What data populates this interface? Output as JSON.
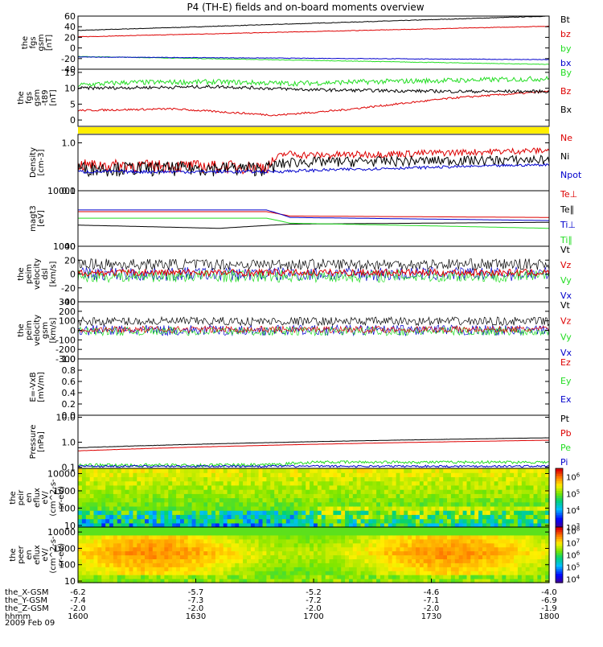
{
  "title": "P4 (TH-E) fields and on-board moments overview",
  "colors": {
    "black": "#000000",
    "red": "#dd0000",
    "green": "#22dd22",
    "blue": "#0000cc",
    "yellow": "#ffee00"
  },
  "chart_data": [
    {
      "type": "line",
      "ylabel": [
        "the",
        "fgs",
        "gsm",
        "[nT]"
      ],
      "ylim": [
        -40,
        60
      ],
      "yticks": [
        "60",
        "40",
        "20",
        "0",
        "-20",
        "-40"
      ],
      "legend": [
        {
          "label": "Bt",
          "color": "black"
        },
        {
          "label": "bz",
          "color": "red"
        },
        {
          "label": "by",
          "color": "green"
        },
        {
          "label": "bx",
          "color": "blue"
        }
      ],
      "series": [
        {
          "name": "Bt",
          "color": "black",
          "x": [
            0,
            1
          ],
          "y": [
            33,
            60
          ],
          "noise": 0.5
        },
        {
          "name": "bz",
          "color": "red",
          "x": [
            0,
            1
          ],
          "y": [
            21,
            41
          ],
          "noise": 0.5
        },
        {
          "name": "by",
          "color": "green",
          "x": [
            0,
            1
          ],
          "y": [
            -16,
            -31
          ],
          "noise": 0.5
        },
        {
          "name": "bx",
          "color": "blue",
          "x": [
            0,
            1
          ],
          "y": [
            -17,
            -22
          ],
          "noise": 0.5
        }
      ]
    },
    {
      "type": "line",
      "ylabel": [
        "the",
        "fgs",
        "gsm",
        "-t89",
        "[nT]"
      ],
      "ylim": [
        -2,
        16
      ],
      "yticks": [
        "15",
        "10",
        "5",
        "0"
      ],
      "legend": [
        {
          "label": "By",
          "color": "green"
        },
        {
          "label": "Bz",
          "color": "red"
        },
        {
          "label": "Bx",
          "color": "black"
        }
      ],
      "yellow_band": true,
      "series": [
        {
          "name": "By",
          "color": "green",
          "x": [
            0,
            0.1,
            0.3,
            0.45,
            0.6,
            1
          ],
          "y": [
            11,
            11.8,
            12,
            11.5,
            12,
            13
          ],
          "noise": 0.8
        },
        {
          "name": "Bz",
          "color": "red",
          "x": [
            0,
            0.2,
            0.42,
            0.55,
            0.8,
            1
          ],
          "y": [
            3,
            3.5,
            1.5,
            3,
            7,
            9
          ],
          "noise": 0.3
        },
        {
          "name": "Bx",
          "color": "black",
          "x": [
            0,
            0.3,
            0.5,
            0.8,
            1
          ],
          "y": [
            10,
            10.5,
            9.5,
            9,
            9
          ],
          "noise": 0.5
        }
      ]
    },
    {
      "type": "line",
      "ylabel": [
        "Density",
        "[cm-3]"
      ],
      "ylim": [
        0.1,
        1.5
      ],
      "yscale": "log",
      "yticks": [
        "1.0",
        "0.1"
      ],
      "legend": [
        {
          "label": "Ne",
          "color": "red"
        },
        {
          "label": "Ni",
          "color": "black"
        },
        {
          "label": "Npot",
          "color": "blue"
        }
      ],
      "series": [
        {
          "name": "Ne",
          "color": "red",
          "x": [
            0,
            0.4,
            0.44,
            0.5,
            0.7,
            1
          ],
          "y": [
            0.35,
            0.32,
            0.6,
            0.55,
            0.6,
            0.7
          ],
          "noise": 0.1
        },
        {
          "name": "Ni",
          "color": "black",
          "x": [
            0,
            0.4,
            0.45,
            1
          ],
          "y": [
            0.3,
            0.3,
            0.4,
            0.45
          ],
          "noise": 0.1
        },
        {
          "name": "Npot",
          "color": "blue",
          "x": [
            0,
            0.4,
            1
          ],
          "y": [
            0.25,
            0.25,
            0.35
          ],
          "noise": 0.02
        }
      ]
    },
    {
      "type": "line",
      "ylabel": [
        "magt3",
        "[eV]"
      ],
      "ylim": [
        1000,
        10000
      ],
      "yscale": "log",
      "yticks": [
        "10000",
        "1000"
      ],
      "legend": [
        {
          "label": "Te⊥",
          "color": "red"
        },
        {
          "label": "Te∥",
          "color": "black"
        },
        {
          "label": "Ti⊥",
          "color": "blue"
        },
        {
          "label": "Ti∥",
          "color": "green"
        }
      ],
      "series": [
        {
          "name": "Te⊥",
          "color": "red",
          "x": [
            0,
            0.4,
            0.45,
            1
          ],
          "y": [
            4200,
            4200,
            3500,
            3300
          ],
          "noise": 0.03
        },
        {
          "name": "Te∥",
          "color": "black",
          "x": [
            0,
            0.3,
            0.45,
            1
          ],
          "y": [
            2400,
            2100,
            2500,
            2700
          ],
          "noise": 0.03
        },
        {
          "name": "Ti⊥",
          "color": "blue",
          "x": [
            0,
            0.4,
            0.45,
            1
          ],
          "y": [
            4500,
            4500,
            3300,
            2900
          ],
          "noise": 0.03
        },
        {
          "name": "Ti∥",
          "color": "green",
          "x": [
            0,
            0.4,
            0.45,
            1
          ],
          "y": [
            3200,
            3200,
            2600,
            2100
          ],
          "noise": 0.03
        }
      ]
    },
    {
      "type": "line",
      "ylabel": [
        "the",
        "peim",
        "velocity",
        "dsl",
        "[km/s]"
      ],
      "ylim": [
        -40,
        40
      ],
      "yticks": [
        "40",
        "20",
        "0",
        "-20",
        "-40"
      ],
      "legend": [
        {
          "label": "Vt",
          "color": "black"
        },
        {
          "label": "Vz",
          "color": "red"
        },
        {
          "label": "Vy",
          "color": "green"
        },
        {
          "label": "Vx",
          "color": "blue"
        }
      ],
      "series": [
        {
          "name": "Vx",
          "color": "blue",
          "x": [
            0,
            1
          ],
          "y": [
            0,
            0
          ],
          "noise": 10
        },
        {
          "name": "Vy",
          "color": "green",
          "x": [
            0,
            1
          ],
          "y": [
            -3,
            -3
          ],
          "noise": 9
        },
        {
          "name": "Vz",
          "color": "red",
          "x": [
            0,
            1
          ],
          "y": [
            2,
            2
          ],
          "noise": 5
        },
        {
          "name": "Vt",
          "color": "black",
          "x": [
            0,
            1
          ],
          "y": [
            14,
            14
          ],
          "noise": 8
        }
      ]
    },
    {
      "type": "line",
      "ylabel": [
        "the",
        "peim",
        "velocity",
        "gsm",
        "[km/s]"
      ],
      "ylim": [
        -300,
        300
      ],
      "yticks": [
        "300",
        "200",
        "100",
        "0",
        "-100",
        "-200",
        "-300"
      ],
      "legend": [
        {
          "label": "Vt",
          "color": "black"
        },
        {
          "label": "Vz",
          "color": "red"
        },
        {
          "label": "Vy",
          "color": "green"
        },
        {
          "label": "Vx",
          "color": "blue"
        }
      ],
      "series": [
        {
          "name": "Vx",
          "color": "blue",
          "x": [
            0,
            1
          ],
          "y": [
            0,
            0
          ],
          "noise": 55
        },
        {
          "name": "Vy",
          "color": "green",
          "x": [
            0,
            1
          ],
          "y": [
            -10,
            -10
          ],
          "noise": 45
        },
        {
          "name": "Vz",
          "color": "red",
          "x": [
            0,
            1
          ],
          "y": [
            10,
            10
          ],
          "noise": 35
        },
        {
          "name": "Vt",
          "color": "black",
          "x": [
            0,
            1
          ],
          "y": [
            95,
            95
          ],
          "noise": 45
        }
      ]
    },
    {
      "type": "line",
      "ylabel": [
        "E=-VxB",
        "[mV/m]"
      ],
      "ylim": [
        0,
        1
      ],
      "yticks": [
        "1.0",
        "0.8",
        "0.6",
        "0.4",
        "0.2",
        "0.0"
      ],
      "legend": [
        {
          "label": "Ez",
          "color": "red"
        },
        {
          "label": "Ey",
          "color": "green"
        },
        {
          "label": "Ex",
          "color": "blue"
        }
      ],
      "series": []
    },
    {
      "type": "line",
      "ylabel": [
        "Pressure",
        "[nPa]"
      ],
      "ylim": [
        0.09,
        12
      ],
      "yscale": "log",
      "yticks": [
        "10.0",
        "1.0",
        "0.1"
      ],
      "legend": [
        {
          "label": "Pt",
          "color": "black"
        },
        {
          "label": "Pb",
          "color": "red"
        },
        {
          "label": "Pe",
          "color": "green"
        },
        {
          "label": "Pi",
          "color": "blue"
        }
      ],
      "series": [
        {
          "name": "Pt",
          "color": "black",
          "x": [
            0,
            1
          ],
          "y": [
            0.6,
            1.5
          ],
          "noise": 0.01
        },
        {
          "name": "Pb",
          "color": "red",
          "x": [
            0,
            1
          ],
          "y": [
            0.45,
            1.2
          ],
          "noise": 0.005
        },
        {
          "name": "Pe",
          "color": "green",
          "x": [
            0,
            0.4,
            0.5,
            1
          ],
          "y": [
            0.12,
            0.12,
            0.16,
            0.16
          ],
          "noise": 0.02
        },
        {
          "name": "Pi",
          "color": "blue",
          "x": [
            0,
            1
          ],
          "y": [
            0.11,
            0.11
          ],
          "noise": 0.01
        }
      ]
    },
    {
      "type": "heatmap",
      "ylabel": [
        "the",
        "peir",
        "en",
        "eflux",
        "eV/",
        "(cm^2-s-",
        "sr-eV)"
      ],
      "ylim": [
        8,
        20000
      ],
      "yscale": "log",
      "yticks": [
        "10000",
        "1000",
        "100",
        "10"
      ],
      "colorbar": {
        "ticks": [
          "10^6",
          "10^5",
          "10^4",
          "10^3"
        ],
        "ylim": [
          3,
          6.5
        ]
      }
    },
    {
      "type": "heatmap",
      "ylabel": [
        "the",
        "peer",
        "en",
        "eflux",
        "eV/",
        "(cm^2-s-",
        "sr-eV)"
      ],
      "ylim": [
        8,
        20000
      ],
      "yscale": "log",
      "yticks": [
        "10000",
        "1000",
        "100",
        "10"
      ],
      "colorbar": {
        "ticks": [
          "10^8",
          "10^7",
          "10^6",
          "10^5",
          "10^4"
        ],
        "ylim": [
          3.7,
          8.3
        ]
      }
    }
  ],
  "xaxis": {
    "rows": [
      {
        "label": "the_X-GSM",
        "values": [
          "-6.2",
          "-5.7",
          "-5.2",
          "-4.6",
          "-4.0"
        ]
      },
      {
        "label": "the_Y-GSM",
        "values": [
          "-7.4",
          "-7.3",
          "-7.2",
          "-7.1",
          "-6.9"
        ]
      },
      {
        "label": "the_Z-GSM",
        "values": [
          "-2.0",
          "-2.0",
          "-2.0",
          "-2.0",
          "-1.9"
        ]
      },
      {
        "label": "hhmm",
        "values": [
          "1600",
          "1630",
          "1700",
          "1730",
          "1800"
        ]
      }
    ],
    "date": "2009 Feb 09"
  }
}
